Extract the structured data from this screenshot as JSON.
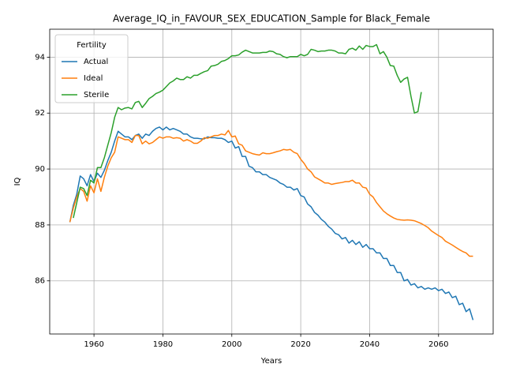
{
  "chart_data": {
    "type": "line",
    "title": "Average_IQ_in_FAVOUR_SEX_EDUCATION_Sample for Black_Female",
    "xlabel": "Years",
    "ylabel": "IQ",
    "x": [
      1953,
      1954,
      1955,
      1956,
      1957,
      1958,
      1959,
      1960,
      1961,
      1962,
      1963,
      1964,
      1965,
      1966,
      1967,
      1968,
      1969,
      1970,
      1971,
      1972,
      1973,
      1974,
      1975,
      1976,
      1977,
      1978,
      1979,
      1980,
      1981,
      1982,
      1983,
      1984,
      1985,
      1986,
      1987,
      1988,
      1989,
      1990,
      1991,
      1992,
      1993,
      1994,
      1995,
      1996,
      1997,
      1998,
      1999,
      2000,
      2001,
      2002,
      2003,
      2004,
      2005,
      2006,
      2007,
      2008,
      2009,
      2010,
      2011,
      2012,
      2013,
      2014,
      2015,
      2016,
      2017,
      2018,
      2019,
      2020,
      2021,
      2022,
      2023,
      2024,
      2025,
      2026,
      2027,
      2028,
      2029,
      2030,
      2031,
      2032,
      2033,
      2034,
      2035,
      2036,
      2037,
      2038,
      2039,
      2040,
      2041,
      2042,
      2043,
      2044,
      2045,
      2046,
      2047,
      2048,
      2049,
      2050,
      2051,
      2052,
      2053,
      2054,
      2055,
      2056,
      2057,
      2058,
      2059,
      2060,
      2061,
      2062,
      2063,
      2064,
      2065,
      2066,
      2067,
      2068,
      2069,
      2070
    ],
    "series": [
      {
        "name": "Actual",
        "color": "#1f77b4",
        "values": [
          88.1,
          88.7,
          89.1,
          89.75,
          89.65,
          89.4,
          89.8,
          89.55,
          89.85,
          89.7,
          89.95,
          90.3,
          90.6,
          91.0,
          91.35,
          91.25,
          91.15,
          91.15,
          91.05,
          91.2,
          91.25,
          91.1,
          91.25,
          91.2,
          91.35,
          91.45,
          91.5,
          91.4,
          91.5,
          91.4,
          91.45,
          91.4,
          91.35,
          91.25,
          91.25,
          91.15,
          91.1,
          91.1,
          91.08,
          91.08,
          91.15,
          91.12,
          91.12,
          91.1,
          91.1,
          91.05,
          90.95,
          91.0,
          90.75,
          90.8,
          90.45,
          90.45,
          90.1,
          90.05,
          89.9,
          89.9,
          89.8,
          89.8,
          89.7,
          89.65,
          89.6,
          89.5,
          89.45,
          89.35,
          89.35,
          89.25,
          89.3,
          89.05,
          89.0,
          88.75,
          88.65,
          88.45,
          88.35,
          88.2,
          88.1,
          87.95,
          87.85,
          87.7,
          87.65,
          87.5,
          87.55,
          87.35,
          87.45,
          87.3,
          87.4,
          87.2,
          87.3,
          87.15,
          87.15,
          87.0,
          87.0,
          86.8,
          86.8,
          86.55,
          86.55,
          86.3,
          86.3,
          86.0,
          86.05,
          85.85,
          85.9,
          85.75,
          85.8,
          85.7,
          85.75,
          85.7,
          85.75,
          85.65,
          85.7,
          85.55,
          85.6,
          85.4,
          85.45,
          85.15,
          85.2,
          84.9,
          85.0,
          84.6
        ]
      },
      {
        "name": "Ideal",
        "color": "#ff7f0e",
        "values": [
          88.1,
          88.6,
          89.0,
          89.3,
          89.2,
          88.85,
          89.4,
          89.15,
          89.65,
          89.2,
          89.7,
          90.1,
          90.4,
          90.6,
          91.15,
          91.1,
          91.05,
          91.05,
          90.95,
          91.2,
          91.2,
          90.9,
          91.0,
          90.9,
          90.95,
          91.05,
          91.15,
          91.1,
          91.15,
          91.15,
          91.1,
          91.12,
          91.1,
          91.0,
          91.05,
          91.0,
          90.92,
          90.92,
          91.0,
          91.12,
          91.1,
          91.15,
          91.2,
          91.2,
          91.25,
          91.22,
          91.38,
          91.15,
          91.18,
          90.9,
          90.85,
          90.65,
          90.6,
          90.55,
          90.52,
          90.5,
          90.58,
          90.55,
          90.55,
          90.58,
          90.62,
          90.65,
          90.7,
          90.68,
          90.7,
          90.6,
          90.55,
          90.35,
          90.2,
          90.0,
          89.9,
          89.72,
          89.65,
          89.58,
          89.5,
          89.5,
          89.45,
          89.48,
          89.5,
          89.52,
          89.55,
          89.55,
          89.6,
          89.5,
          89.5,
          89.35,
          89.32,
          89.1,
          89.0,
          88.8,
          88.65,
          88.5,
          88.4,
          88.32,
          88.25,
          88.2,
          88.18,
          88.17,
          88.18,
          88.17,
          88.15,
          88.1,
          88.05,
          87.98,
          87.9,
          87.78,
          87.7,
          87.62,
          87.55,
          87.42,
          87.35,
          87.28,
          87.2,
          87.12,
          87.05,
          87.0,
          86.88,
          86.88
        ]
      },
      {
        "name": "Sterile",
        "color": "#2ca02c",
        "values": [
          null,
          88.25,
          88.8,
          89.35,
          89.3,
          89.05,
          89.6,
          89.5,
          90.05,
          90.05,
          90.4,
          90.85,
          91.3,
          91.85,
          92.2,
          92.12,
          92.18,
          92.2,
          92.15,
          92.38,
          92.42,
          92.2,
          92.35,
          92.52,
          92.6,
          92.7,
          92.75,
          92.82,
          92.95,
          93.08,
          93.15,
          93.25,
          93.2,
          93.2,
          93.3,
          93.25,
          93.35,
          93.35,
          93.42,
          93.48,
          93.52,
          93.68,
          93.7,
          93.75,
          93.85,
          93.88,
          93.95,
          94.05,
          94.05,
          94.08,
          94.18,
          94.25,
          94.2,
          94.15,
          94.15,
          94.15,
          94.17,
          94.17,
          94.22,
          94.2,
          94.12,
          94.1,
          94.02,
          93.98,
          94.02,
          94.02,
          94.02,
          94.1,
          94.05,
          94.1,
          94.28,
          94.25,
          94.2,
          94.22,
          94.22,
          94.25,
          94.25,
          94.22,
          94.15,
          94.15,
          94.12,
          94.28,
          94.32,
          94.25,
          94.4,
          94.28,
          94.42,
          94.38,
          94.38,
          94.45,
          94.12,
          94.2,
          94.0,
          93.7,
          93.68,
          93.35,
          93.1,
          93.22,
          93.28,
          92.6,
          92.0,
          92.05,
          92.75,
          null,
          null,
          null,
          null,
          null,
          null,
          null,
          null,
          null,
          null,
          null,
          null,
          null,
          null,
          null
        ]
      }
    ],
    "xlim": [
      1947.15,
      2075.85
    ],
    "ylim": [
      84.1,
      95.0
    ],
    "xticks": [
      1960,
      1980,
      2000,
      2020,
      2040,
      2060
    ],
    "yticks": [
      86,
      88,
      90,
      92,
      94
    ],
    "grid": true,
    "legend_title": "Fertility",
    "legend_loc": "upper left"
  }
}
